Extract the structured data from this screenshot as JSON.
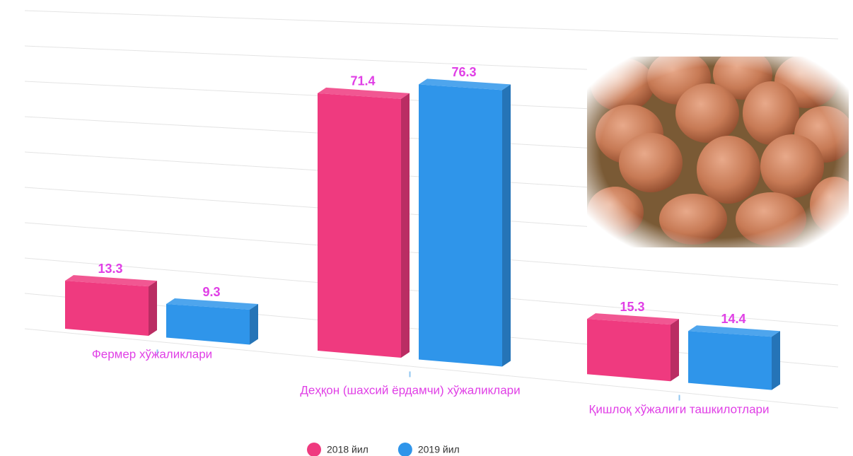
{
  "chart_data": {
    "type": "bar",
    "categories": [
      "Фермер хўжаликлари",
      "Деҳқон (шахсий ёрдамчи) хўжаликлари",
      "Қишлоқ хўжалиги ташкилотлари"
    ],
    "series": [
      {
        "name": "2018 йил",
        "color": "#ef3a7f",
        "values": [
          13.3,
          71.4,
          15.3
        ]
      },
      {
        "name": "2019 йил",
        "color": "#2f95ea",
        "values": [
          9.3,
          76.3,
          14.4
        ]
      }
    ],
    "ylim": [
      0,
      80
    ],
    "grid": true,
    "legend": "bottom"
  }
}
